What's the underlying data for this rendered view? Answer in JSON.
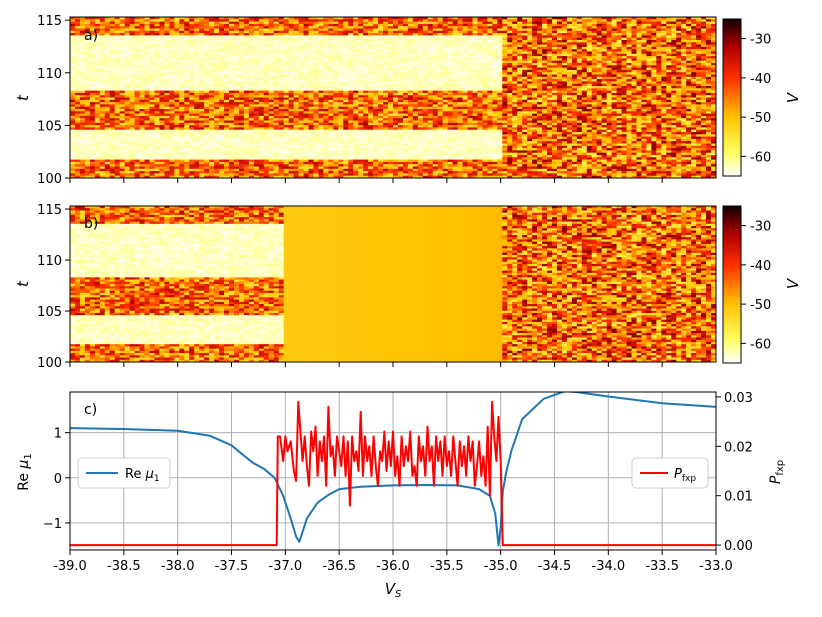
{
  "chart_data": [
    {
      "type": "heatmap",
      "panel_label": "a)",
      "ylabel": "t",
      "ylim": [
        100,
        115.3
      ],
      "yticks": [
        "100",
        "105",
        "110",
        "115"
      ],
      "colorbar": {
        "label": "V",
        "ticks": [
          "-30",
          "-40",
          "-50",
          "-60"
        ],
        "range": [
          -65,
          -25
        ],
        "colormap": "hot_r"
      },
      "x_range": [
        -39.0,
        -33.0
      ]
    },
    {
      "type": "heatmap",
      "panel_label": "b)",
      "ylabel": "t",
      "ylim": [
        100,
        115.3
      ],
      "yticks": [
        "100",
        "105",
        "110",
        "115"
      ],
      "colorbar": {
        "label": "V",
        "ticks": [
          "-30",
          "-40",
          "-50",
          "-60"
        ],
        "range": [
          -65,
          -25
        ],
        "colormap": "hot_r"
      },
      "x_range": [
        -39.0,
        -33.0
      ]
    },
    {
      "type": "line",
      "panel_label": "c)",
      "xlabel": "V_S",
      "ylabel": "Re μ_1",
      "ylabel_right": "P_fxp",
      "xlim": [
        -39.0,
        -33.0
      ],
      "ylim": [
        -1.6,
        1.9
      ],
      "ylim_right": [
        -0.001,
        0.031
      ],
      "xticks": [
        "-39.0",
        "-38.5",
        "-38.0",
        "-37.5",
        "-37.0",
        "-36.5",
        "-36.0",
        "-35.5",
        "-35.0",
        "-34.5",
        "-34.0",
        "-33.5",
        "-33.0"
      ],
      "yticks": [
        "-1",
        "0",
        "1"
      ],
      "yticks_right": [
        "0.00",
        "0.01",
        "0.02",
        "0.03"
      ],
      "grid": true,
      "series": [
        {
          "name": "Re μ₁",
          "color": "#1f77b4",
          "axis": "left",
          "x": [
            -39.0,
            -38.5,
            -38.0,
            -37.7,
            -37.5,
            -37.4,
            -37.3,
            -37.2,
            -37.1,
            -37.02,
            -36.95,
            -36.9,
            -36.87,
            -36.8,
            -36.7,
            -36.6,
            -36.5,
            -36.3,
            -36.0,
            -35.7,
            -35.4,
            -35.2,
            -35.1,
            -35.05,
            -35.02,
            -35.0,
            -34.98,
            -34.95,
            -34.9,
            -34.8,
            -34.6,
            -34.4,
            -34.3,
            -34.0,
            -33.5,
            -33.0
          ],
          "y": [
            1.1,
            1.08,
            1.04,
            0.93,
            0.72,
            0.52,
            0.33,
            0.2,
            0.0,
            -0.4,
            -0.9,
            -1.3,
            -1.42,
            -0.9,
            -0.55,
            -0.38,
            -0.25,
            -0.2,
            -0.17,
            -0.16,
            -0.17,
            -0.25,
            -0.4,
            -0.8,
            -1.5,
            -1.1,
            -0.3,
            0.1,
            0.6,
            1.3,
            1.75,
            1.92,
            1.9,
            1.8,
            1.65,
            1.57
          ]
        },
        {
          "name": "P_fxp",
          "color": "#ff0000",
          "axis": "right",
          "x": [
            -39.0,
            -37.08,
            -37.07,
            -37.05,
            -37.02,
            -37.0,
            -36.98,
            -36.95,
            -36.92,
            -36.9,
            -36.88,
            -36.86,
            -36.84,
            -36.82,
            -36.8,
            -36.78,
            -36.76,
            -36.74,
            -36.72,
            -36.7,
            -36.68,
            -36.66,
            -36.64,
            -36.62,
            -36.6,
            -36.58,
            -36.56,
            -36.54,
            -36.52,
            -36.5,
            -36.48,
            -36.46,
            -36.44,
            -36.42,
            -36.4,
            -36.38,
            -36.36,
            -36.34,
            -36.32,
            -36.3,
            -36.28,
            -36.26,
            -36.24,
            -36.22,
            -36.2,
            -36.18,
            -36.16,
            -36.14,
            -36.12,
            -36.1,
            -36.08,
            -36.06,
            -36.04,
            -36.02,
            -36.0,
            -35.98,
            -35.96,
            -35.94,
            -35.92,
            -35.9,
            -35.88,
            -35.86,
            -35.84,
            -35.82,
            -35.8,
            -35.78,
            -35.76,
            -35.74,
            -35.72,
            -35.7,
            -35.68,
            -35.66,
            -35.64,
            -35.62,
            -35.6,
            -35.58,
            -35.56,
            -35.54,
            -35.52,
            -35.5,
            -35.48,
            -35.46,
            -35.44,
            -35.42,
            -35.4,
            -35.38,
            -35.36,
            -35.34,
            -35.32,
            -35.3,
            -35.28,
            -35.26,
            -35.24,
            -35.22,
            -35.2,
            -35.18,
            -35.16,
            -35.14,
            -35.12,
            -35.1,
            -35.08,
            -35.06,
            -35.04,
            -35.02,
            -35.0,
            -34.98,
            -33.0
          ],
          "y": [
            0.0,
            0.0,
            0.022,
            0.022,
            0.017,
            0.022,
            0.019,
            0.021,
            0.015,
            0.013,
            0.029,
            0.023,
            0.017,
            0.022,
            0.016,
            0.012,
            0.023,
            0.019,
            0.024,
            0.014,
            0.021,
            0.017,
            0.022,
            0.012,
            0.028,
            0.018,
            0.02,
            0.014,
            0.022,
            0.019,
            0.016,
            0.022,
            0.014,
            0.021,
            0.008,
            0.022,
            0.017,
            0.019,
            0.015,
            0.027,
            0.014,
            0.022,
            0.017,
            0.02,
            0.014,
            0.022,
            0.016,
            0.012,
            0.019,
            0.017,
            0.023,
            0.015,
            0.021,
            0.016,
            0.023,
            0.014,
            0.018,
            0.012,
            0.022,
            0.016,
            0.02,
            0.017,
            0.023,
            0.014,
            0.016,
            0.012,
            0.022,
            0.017,
            0.02,
            0.014,
            0.024,
            0.017,
            0.02,
            0.012,
            0.022,
            0.017,
            0.021,
            0.014,
            0.022,
            0.016,
            0.019,
            0.014,
            0.022,
            0.017,
            0.012,
            0.021,
            0.016,
            0.02,
            0.014,
            0.022,
            0.017,
            0.021,
            0.012,
            0.016,
            0.021,
            0.014,
            0.018,
            0.012,
            0.024,
            0.01,
            0.029,
            0.022,
            0.017,
            0.026,
            0.017,
            0.0,
            0.0
          ]
        }
      ],
      "legend": [
        {
          "label": "Re μ₁",
          "placement": "center-left"
        },
        {
          "label": "P_fxp",
          "placement": "center-right"
        }
      ]
    }
  ]
}
